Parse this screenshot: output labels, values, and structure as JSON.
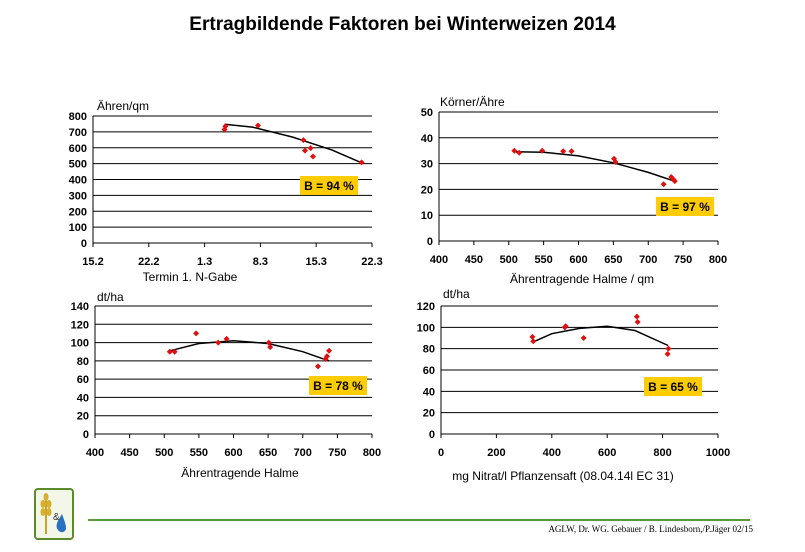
{
  "page": {
    "title": "Ertragbildende Faktoren bei Winterweizen 2014",
    "footer_credit": "AGLW, Dr. WG. Gebauer / B. Lindesborn,/P.Jäger 02/15"
  },
  "logo": {
    "icon": "wheat-and-water-drop-icon",
    "mark": "&"
  },
  "colors": {
    "points": "#e01010",
    "trend": "#000000",
    "badge": "#ffcc00",
    "footer_line": "#5a9a3a"
  },
  "chart_data": [
    {
      "id": "c1",
      "type": "scatter",
      "ylabel": "Ähren/qm",
      "xlabel": "Termin 1. N-Gabe",
      "x_tick_labels": [
        "15.2",
        "22.2",
        "1.3",
        "8.3",
        "15.3",
        "22.3"
      ],
      "x_tick_values": [
        0,
        7,
        14,
        21,
        28,
        35
      ],
      "xlim": [
        0,
        35
      ],
      "ylim": [
        0,
        800
      ],
      "y_ticks": [
        0,
        100,
        200,
        300,
        400,
        500,
        600,
        700,
        800
      ],
      "grid": true,
      "points": [
        {
          "x": 16.5,
          "y": 715
        },
        {
          "x": 16.6,
          "y": 735
        },
        {
          "x": 20.7,
          "y": 740
        },
        {
          "x": 26.4,
          "y": 648
        },
        {
          "x": 26.6,
          "y": 582
        },
        {
          "x": 27.3,
          "y": 598
        },
        {
          "x": 27.6,
          "y": 545
        },
        {
          "x": 33.7,
          "y": 508
        }
      ],
      "trend": [
        [
          16.5,
          748
        ],
        [
          20,
          730
        ],
        [
          25,
          668
        ],
        [
          30,
          585
        ],
        [
          33.7,
          505
        ]
      ],
      "annotation": "B = 94 %"
    },
    {
      "id": "c2",
      "type": "scatter",
      "ylabel": "Körner/Ähre",
      "xlabel": "Ährentragende Halme / qm",
      "x_ticks": [
        400,
        450,
        500,
        550,
        600,
        650,
        700,
        750,
        800
      ],
      "xlim": [
        400,
        800
      ],
      "ylim": [
        0,
        50
      ],
      "y_ticks": [
        0,
        10,
        20,
        30,
        40,
        50
      ],
      "grid": true,
      "points": [
        {
          "x": 508,
          "y": 35
        },
        {
          "x": 515,
          "y": 34.2
        },
        {
          "x": 548,
          "y": 35
        },
        {
          "x": 578,
          "y": 34.8
        },
        {
          "x": 590,
          "y": 34.8
        },
        {
          "x": 651,
          "y": 31.9
        },
        {
          "x": 653,
          "y": 30.6
        },
        {
          "x": 722,
          "y": 22
        },
        {
          "x": 733,
          "y": 24.8
        },
        {
          "x": 736,
          "y": 23.9
        },
        {
          "x": 738,
          "y": 23.2
        }
      ],
      "trend": [
        [
          508,
          34.6
        ],
        [
          550,
          34.4
        ],
        [
          600,
          33
        ],
        [
          650,
          30.3
        ],
        [
          700,
          26.6
        ],
        [
          740,
          23
        ]
      ],
      "annotation": "B = 97 %"
    },
    {
      "id": "c3",
      "type": "scatter",
      "ylabel": "dt/ha",
      "xlabel": "Ährentragende Halme",
      "x_ticks": [
        400,
        450,
        500,
        550,
        600,
        650,
        700,
        750,
        800
      ],
      "xlim": [
        400,
        800
      ],
      "ylim": [
        0,
        140
      ],
      "y_ticks": [
        0,
        20,
        40,
        60,
        80,
        100,
        120,
        140
      ],
      "grid": true,
      "points": [
        {
          "x": 508,
          "y": 90
        },
        {
          "x": 515,
          "y": 90
        },
        {
          "x": 546,
          "y": 110
        },
        {
          "x": 578,
          "y": 100
        },
        {
          "x": 590,
          "y": 104
        },
        {
          "x": 651,
          "y": 100
        },
        {
          "x": 653,
          "y": 95
        },
        {
          "x": 722,
          "y": 74
        },
        {
          "x": 733,
          "y": 82
        },
        {
          "x": 735,
          "y": 85
        },
        {
          "x": 738,
          "y": 91
        }
      ],
      "trend": [
        [
          508,
          91
        ],
        [
          550,
          99
        ],
        [
          600,
          102
        ],
        [
          650,
          99
        ],
        [
          700,
          90
        ],
        [
          738,
          80
        ]
      ],
      "annotation": "B = 78 %"
    },
    {
      "id": "c4",
      "type": "scatter",
      "ylabel": "dt/ha",
      "xlabel": "mg Nitrat/l Pflanzensaft (08.04.14l EC 31)",
      "x_ticks": [
        0,
        200,
        400,
        600,
        800,
        1000
      ],
      "xlim": [
        0,
        1000
      ],
      "ylim": [
        0,
        120
      ],
      "y_ticks": [
        0,
        20,
        40,
        60,
        80,
        100,
        120
      ],
      "grid": true,
      "points": [
        {
          "x": 330,
          "y": 91
        },
        {
          "x": 333,
          "y": 87
        },
        {
          "x": 447,
          "y": 100
        },
        {
          "x": 450,
          "y": 101
        },
        {
          "x": 515,
          "y": 90
        },
        {
          "x": 707,
          "y": 110
        },
        {
          "x": 710,
          "y": 105
        },
        {
          "x": 818,
          "y": 75
        },
        {
          "x": 821,
          "y": 80
        }
      ],
      "trend": [
        [
          330,
          86
        ],
        [
          400,
          94
        ],
        [
          500,
          99
        ],
        [
          600,
          101
        ],
        [
          700,
          97
        ],
        [
          820,
          83
        ]
      ],
      "annotation": "B = 65 %"
    }
  ]
}
